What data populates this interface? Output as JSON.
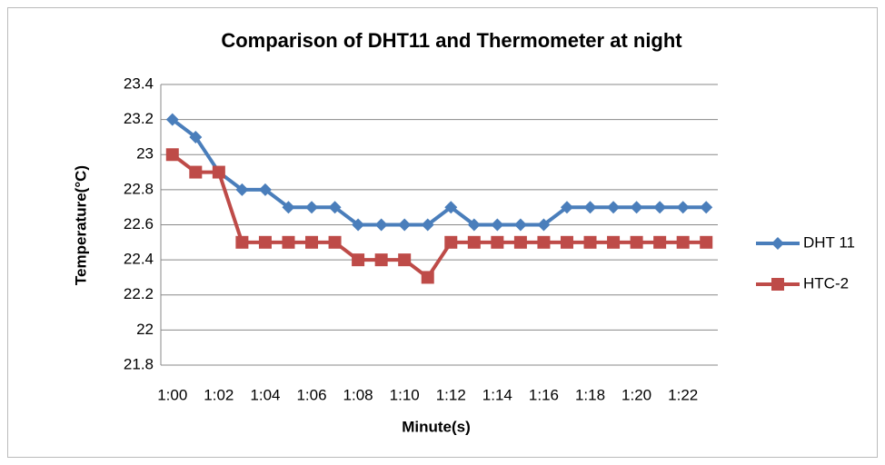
{
  "chart_data": {
    "type": "line",
    "title": "Comparison of DHT11 and Thermometer at night",
    "x_label": "Minute(s)",
    "y_label": "Temperature(°C)",
    "categories": [
      "1:00",
      null,
      "1:02",
      null,
      "1:04",
      null,
      "1:06",
      null,
      "1:08",
      null,
      "1:10",
      null,
      "1:12",
      null,
      "1:14",
      null,
      "1:16",
      null,
      "1:18",
      null,
      "1:20",
      null,
      "1:22",
      null
    ],
    "series": [
      {
        "name": "DHT 11",
        "color": "#4a7ebb",
        "marker": "diamond",
        "values": [
          23.2,
          23.1,
          22.9,
          22.8,
          22.8,
          22.7,
          22.7,
          22.7,
          22.6,
          22.6,
          22.6,
          22.6,
          22.7,
          22.6,
          22.6,
          22.6,
          22.6,
          22.7,
          22.7,
          22.7,
          22.7,
          22.7,
          22.7,
          22.7
        ]
      },
      {
        "name": "HTC-2",
        "color": "#be4b48",
        "marker": "square",
        "values": [
          23.0,
          22.9,
          22.9,
          22.5,
          22.5,
          22.5,
          22.5,
          22.5,
          22.4,
          22.4,
          22.4,
          22.3,
          22.5,
          22.5,
          22.5,
          22.5,
          22.5,
          22.5,
          22.5,
          22.5,
          22.5,
          22.5,
          22.5,
          22.5
        ]
      }
    ],
    "ylim": [
      21.8,
      23.4
    ],
    "yticks": [
      21.8,
      22,
      22.2,
      22.4,
      22.6,
      22.8,
      23,
      23.2,
      23.4
    ],
    "grid": true,
    "legend": "right"
  }
}
